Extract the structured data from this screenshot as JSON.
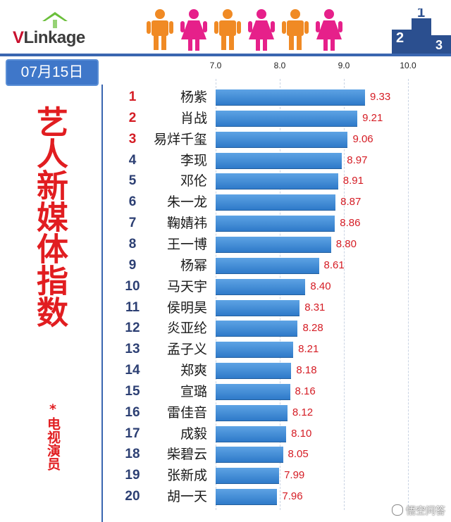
{
  "header": {
    "logo_text_main": "VLinkage",
    "logo_text_v": "V",
    "logo_text_rest": "Linkage"
  },
  "date": "07月15日",
  "side_title": "艺人新媒体指数",
  "side_note": "*电视演员",
  "watermark": "悟空问答",
  "colors": {
    "bar": "#3e86d4",
    "accent_red": "#e11d20",
    "rule_blue": "#3a66b0",
    "figure_orange": "#f08a24",
    "figure_pink": "#e6208a"
  },
  "chart_data": {
    "type": "bar",
    "orientation": "horizontal",
    "title": "艺人新媒体指数",
    "xlim": [
      6.0,
      10.0
    ],
    "ticks": [
      "7.0",
      "8.0",
      "9.0",
      "10.0"
    ],
    "tick_values": [
      7.0,
      8.0,
      9.0,
      10.0
    ],
    "grid": true,
    "categories": [
      "杨紫",
      "肖战",
      "易烊千玺",
      "李现",
      "邓伦",
      "朱一龙",
      "鞠婧祎",
      "王一博",
      "杨幂",
      "马天宇",
      "侯明昊",
      "炎亚纶",
      "孟子义",
      "郑爽",
      "宣璐",
      "雷佳音",
      "成毅",
      "柴碧云",
      "张新成",
      "胡一天"
    ],
    "ranks": [
      "1",
      "2",
      "3",
      "4",
      "5",
      "6",
      "7",
      "8",
      "9",
      "10",
      "11",
      "12",
      "13",
      "14",
      "15",
      "16",
      "17",
      "18",
      "19",
      "20"
    ],
    "values": [
      9.33,
      9.21,
      9.06,
      8.97,
      8.91,
      8.87,
      8.86,
      8.8,
      8.61,
      8.4,
      8.31,
      8.28,
      8.21,
      8.18,
      8.16,
      8.12,
      8.1,
      8.05,
      7.99,
      7.96
    ],
    "value_labels": [
      "9.33",
      "9.21",
      "9.06",
      "8.97",
      "8.91",
      "8.87",
      "8.86",
      "8.80",
      "8.61",
      "8.40",
      "8.31",
      "8.28",
      "8.21",
      "8.18",
      "8.16",
      "8.12",
      "8.10",
      "8.05",
      "7.99",
      "7.96"
    ]
  }
}
